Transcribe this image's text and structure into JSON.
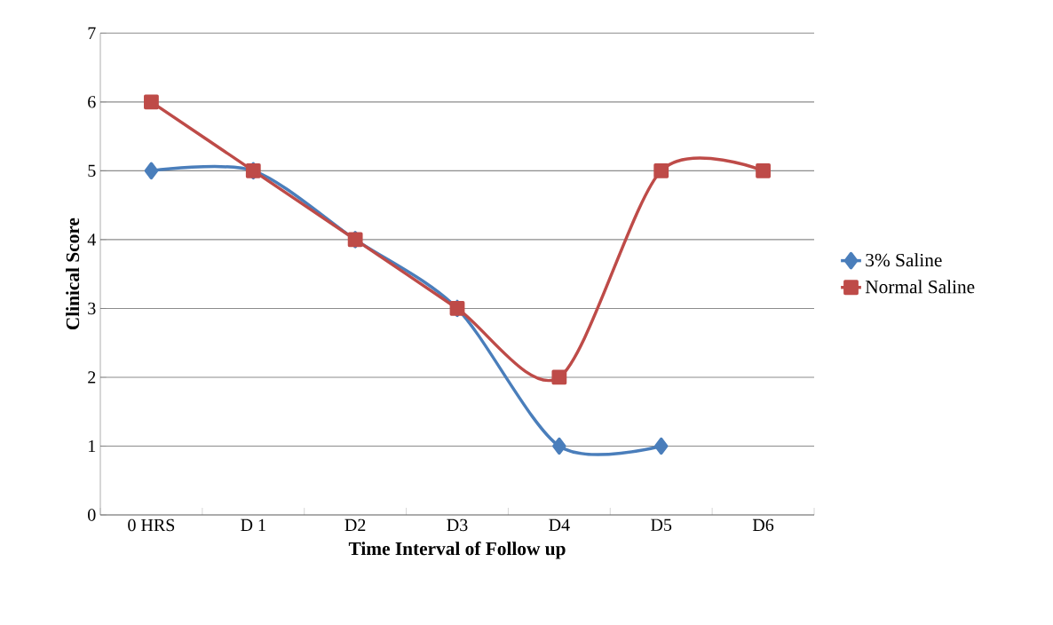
{
  "chart_data": {
    "type": "line",
    "xlabel": "Time Interval of Follow up",
    "ylabel": "Clinical Score",
    "categories": [
      "0 HRS",
      "D 1",
      "D2",
      "D3",
      "D4",
      "D5",
      "D6"
    ],
    "series": [
      {
        "name": "3% Saline",
        "color": "#4a7ebb",
        "marker": "diamond",
        "values": [
          5,
          5,
          4,
          3,
          1,
          1,
          null
        ]
      },
      {
        "name": "Normal Saline",
        "color": "#be4b48",
        "marker": "square",
        "values": [
          6,
          5,
          4,
          3,
          2,
          5,
          5
        ]
      }
    ],
    "ylim": [
      0,
      7
    ],
    "yticks": [
      0,
      1,
      2,
      3,
      4,
      5,
      6,
      7
    ],
    "grid": "y",
    "legend": "right",
    "line_style": "solid"
  }
}
